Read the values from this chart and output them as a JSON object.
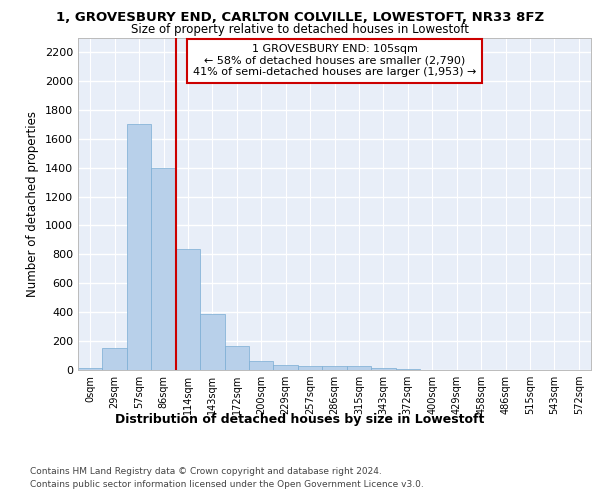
{
  "title": "1, GROVESBURY END, CARLTON COLVILLE, LOWESTOFT, NR33 8FZ",
  "subtitle": "Size of property relative to detached houses in Lowestoft",
  "xlabel": "Distribution of detached houses by size in Lowestoft",
  "ylabel": "Number of detached properties",
  "bar_color": "#b8d0ea",
  "bar_edge_color": "#7aadd4",
  "background_color": "#ffffff",
  "plot_bg_color": "#e8eef8",
  "grid_color": "#ffffff",
  "annotation_text": "1 GROVESBURY END: 105sqm\n← 58% of detached houses are smaller (2,790)\n41% of semi-detached houses are larger (1,953) →",
  "annotation_box_color": "#ffffff",
  "annotation_border_color": "#cc0000",
  "red_line_color": "#cc0000",
  "categories": [
    "0sqm",
    "29sqm",
    "57sqm",
    "86sqm",
    "114sqm",
    "143sqm",
    "172sqm",
    "200sqm",
    "229sqm",
    "257sqm",
    "286sqm",
    "315sqm",
    "343sqm",
    "372sqm",
    "400sqm",
    "429sqm",
    "458sqm",
    "486sqm",
    "515sqm",
    "543sqm",
    "572sqm"
  ],
  "values": [
    15,
    155,
    1700,
    1395,
    835,
    385,
    165,
    65,
    38,
    28,
    28,
    28,
    15,
    10,
    0,
    0,
    0,
    0,
    0,
    0,
    0
  ],
  "red_line_bin": 4,
  "ylim": [
    0,
    2300
  ],
  "yticks": [
    0,
    200,
    400,
    600,
    800,
    1000,
    1200,
    1400,
    1600,
    1800,
    2000,
    2200
  ],
  "footer_line1": "Contains HM Land Registry data © Crown copyright and database right 2024.",
  "footer_line2": "Contains public sector information licensed under the Open Government Licence v3.0."
}
